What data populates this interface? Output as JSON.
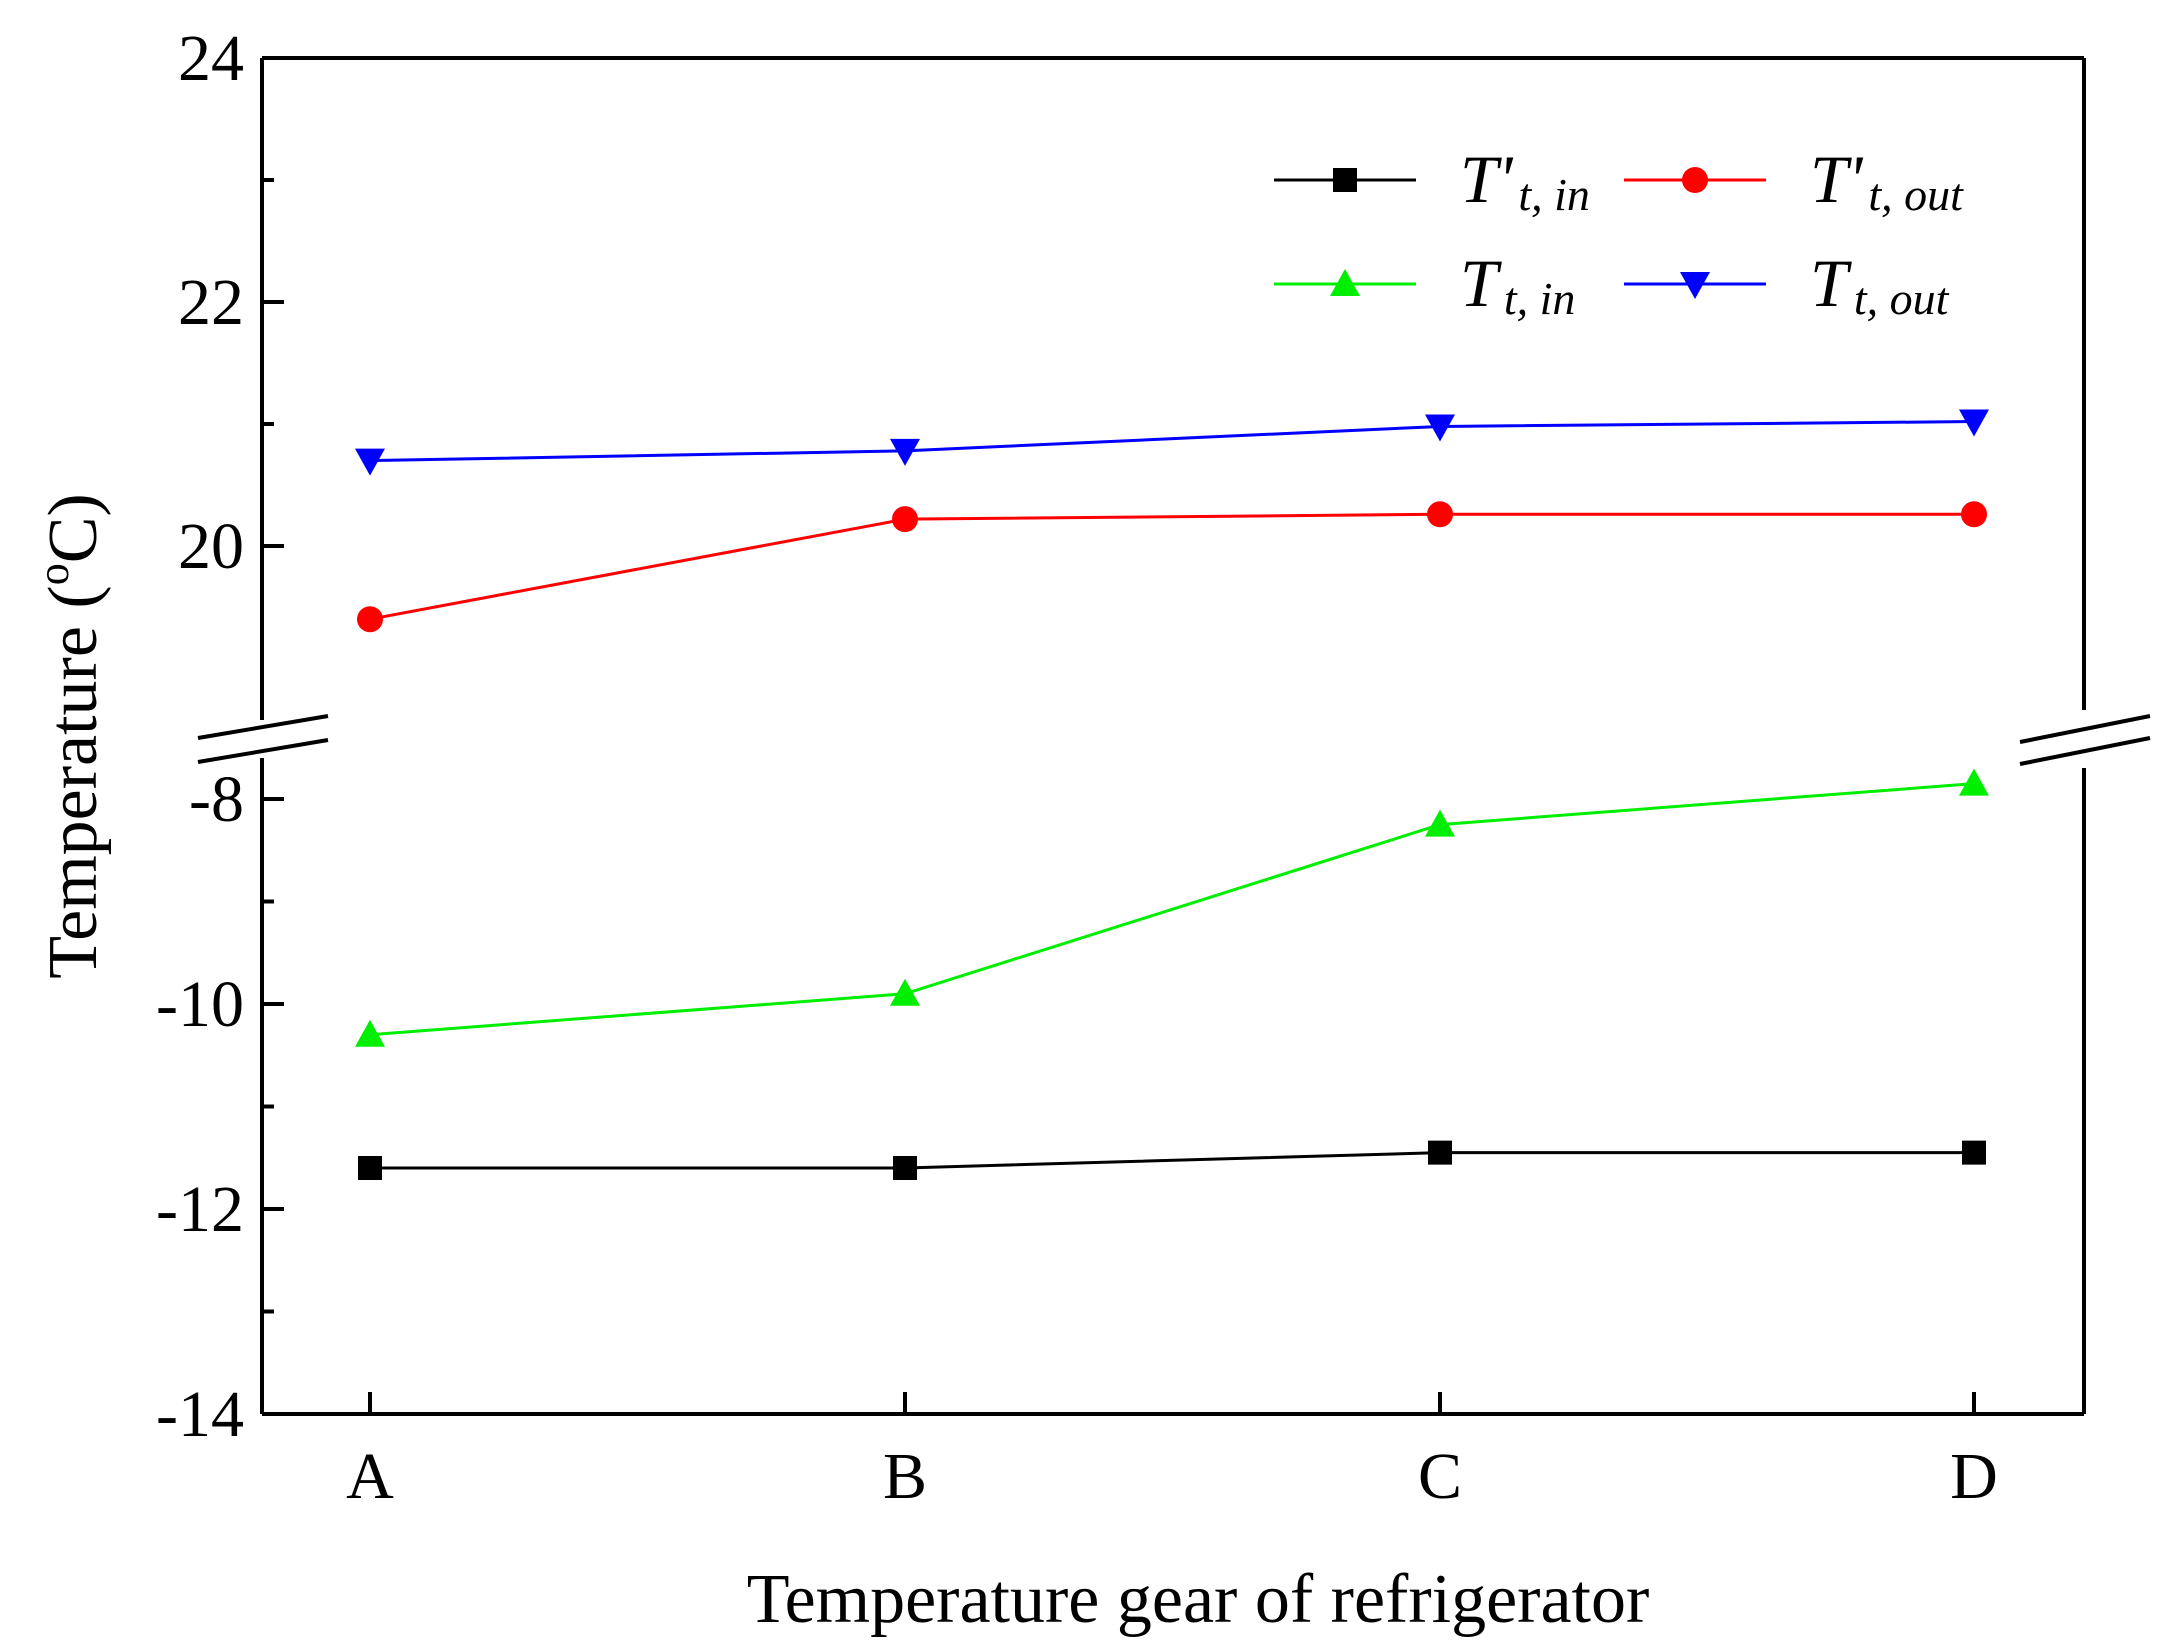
{
  "chart_data": {
    "type": "line",
    "title": "",
    "xlabel": "Temperature gear of refrigerator",
    "ylabel_main": "Temperature (",
    "ylabel_sup": "o",
    "ylabel_unit": "C)",
    "categories": [
      "A",
      "B",
      "C",
      "D"
    ],
    "y_axis_break": {
      "upper_segment": {
        "range": [
          18.5,
          24
        ],
        "ticks": [
          20,
          22,
          24
        ],
        "minor_ticks": [
          21,
          23
        ]
      },
      "lower_segment": {
        "range": [
          -14,
          -7.5
        ],
        "ticks": [
          -14,
          -12,
          -10,
          -8
        ],
        "minor_ticks": [
          -13,
          -11,
          -9
        ]
      }
    },
    "grid": false,
    "legend_position": "top-right",
    "series": [
      {
        "key": "tp_in",
        "name_main": "T'",
        "name_sub": "t, in",
        "color": "#000000",
        "marker": "square",
        "values": [
          -11.6,
          -11.6,
          -11.45,
          -11.45
        ]
      },
      {
        "key": "tp_out",
        "name_main": "T'",
        "name_sub": "t, out",
        "color": "#ff0000",
        "marker": "circle",
        "values": [
          19.4,
          20.22,
          20.26,
          20.26
        ]
      },
      {
        "key": "t_in",
        "name_main": "T",
        "name_sub": "t, in",
        "color": "#00ee00",
        "marker": "triangle-up",
        "values": [
          -10.3,
          -9.9,
          -8.25,
          -7.85
        ]
      },
      {
        "key": "t_out",
        "name_main": "T",
        "name_sub": "t, out",
        "color": "#0000ff",
        "marker": "triangle-down",
        "values": [
          20.7,
          20.78,
          20.98,
          21.02
        ]
      }
    ]
  }
}
